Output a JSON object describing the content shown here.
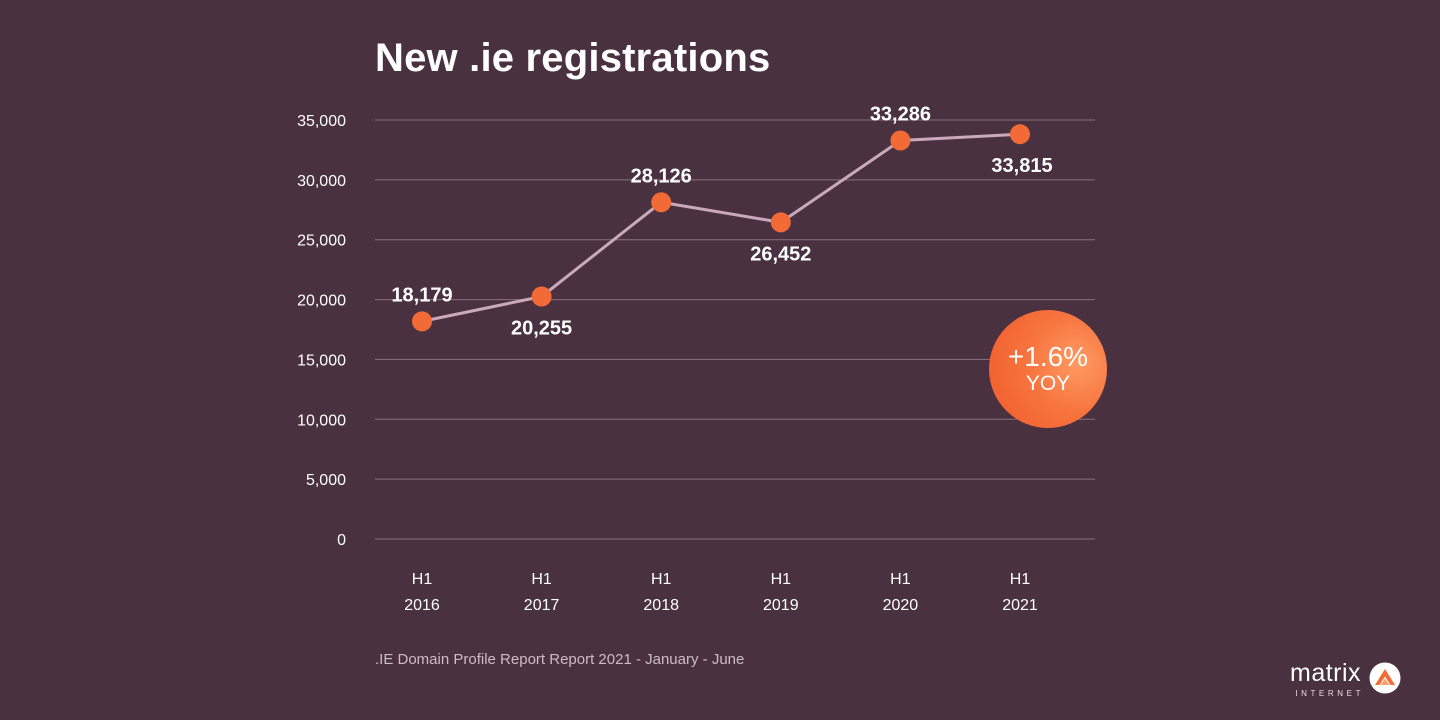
{
  "colors": {
    "background": "#4a3140",
    "line": "#c9a9bb",
    "marker": "#f26a35",
    "grid": "#8a6f7e",
    "text": "#ffffff"
  },
  "badge": {
    "value": "+1.6%",
    "label": "YOY"
  },
  "source_note": ".IE Domain Profile Report Report 2021 - January - June",
  "logo": {
    "name": "matrix",
    "sub": "INTERNET",
    "icon": "matrix-logo-icon"
  },
  "chart_data": {
    "type": "line",
    "title": "New .ie registrations",
    "categories": [
      {
        "line1": "H1",
        "line2": "2016"
      },
      {
        "line1": "H1",
        "line2": "2017"
      },
      {
        "line1": "H1",
        "line2": "2018"
      },
      {
        "line1": "H1",
        "line2": "2019"
      },
      {
        "line1": "H1",
        "line2": "2020"
      },
      {
        "line1": "H1",
        "line2": "2021"
      }
    ],
    "values": [
      18179,
      20255,
      28126,
      26452,
      33286,
      33815
    ],
    "value_labels": [
      "18,179",
      "20,255",
      "28,126",
      "26,452",
      "33,286",
      "33,815"
    ],
    "label_positions": [
      "above",
      "below",
      "above",
      "below",
      "above",
      "below"
    ],
    "yticks": [
      0,
      5000,
      10000,
      15000,
      20000,
      25000,
      30000,
      35000
    ],
    "ytick_labels": [
      "0",
      "5,000",
      "10,000",
      "15,000",
      "20,000",
      "25,000",
      "30,000",
      "35,000"
    ],
    "ylim": [
      0,
      35000
    ],
    "grid": true,
    "xlabel": "",
    "ylabel": ""
  }
}
